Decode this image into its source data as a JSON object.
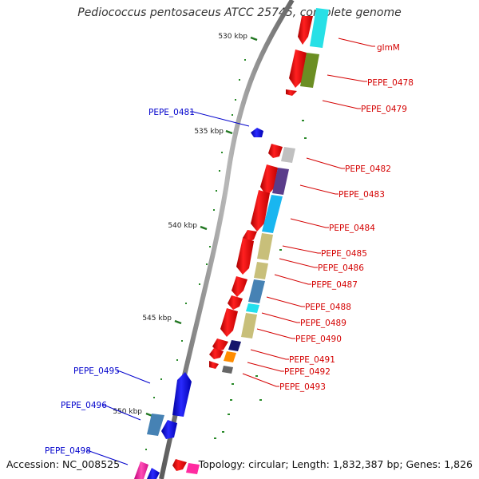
{
  "title": "Pediococcus pentosaceus ATCC 25745, complete genome",
  "footer": {
    "accession": "Accession: NC_008525",
    "topology": "Topology: circular; Length: 1,832,387 bp; Genes: 1,826"
  },
  "colors": {
    "forward_label": "#d40000",
    "reverse_label": "#0000cc",
    "backbone": "#8a8a8a",
    "tick": "#227722"
  },
  "kbp_ticks": [
    "530 kbp",
    "535 kbp",
    "540 kbp",
    "545 kbp",
    "550 kbp"
  ],
  "right_labels": [
    "glmM",
    "PEPE_0478",
    "PEPE_0479",
    "PEPE_0482",
    "PEPE_0483",
    "PEPE_0484",
    "PEPE_0485",
    "PEPE_0486",
    "PEPE_0487",
    "PEPE_0488",
    "PEPE_0489",
    "PEPE_0490",
    "PEPE_0491",
    "PEPE_0492",
    "PEPE_0493"
  ],
  "left_labels": [
    "PEPE_0481",
    "PEPE_0495",
    "PEPE_0496",
    "PEPE_0498"
  ]
}
